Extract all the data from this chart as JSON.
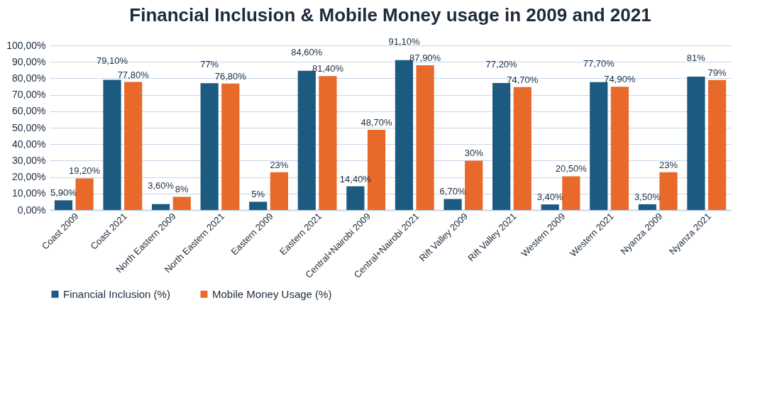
{
  "chart_data": {
    "type": "bar",
    "title": "Financial Inclusion & Mobile Money usage in 2009 and 2021",
    "categories": [
      "Coast 2009",
      "Coast 2021",
      "North Eastern 2009",
      "North Eastern 2021",
      "Eastern 2009",
      "Eastern 2021",
      "Central+Nairobi 2009",
      "Central+Nairobi 2021",
      "Rift Valley 2009",
      "Rift Valley 2021",
      "Western 2009",
      "Western 2021",
      "Nyanza 2009",
      "Nyanza 2021"
    ],
    "series": [
      {
        "name": "Financial Inclusion (%)",
        "color": "#1d5a80",
        "values": [
          5.9,
          79.1,
          3.6,
          77,
          5,
          84.6,
          14.4,
          91.1,
          6.7,
          77.2,
          3.4,
          77.7,
          3.5,
          81
        ],
        "value_labels": [
          "5,90%",
          "79,10%",
          "3,60%",
          "77%",
          "5%",
          "84,60%",
          "14,40%",
          "91,10%",
          "6,70%",
          "77,20%",
          "3,40%",
          "77,70%",
          "3,50%",
          "81%"
        ]
      },
      {
        "name": "Mobile Money Usage (%)",
        "color": "#e8692a",
        "values": [
          19.2,
          77.8,
          8,
          76.8,
          23,
          81.4,
          48.7,
          87.9,
          30,
          74.7,
          20.5,
          74.9,
          23,
          79
        ],
        "value_labels": [
          "19,20%",
          "77,80%",
          "8%",
          "76,80%",
          "23%",
          "81,40%",
          "48,70%",
          "87,90%",
          "30%",
          "74,70%",
          "20,50%",
          "74,90%",
          "23%",
          "79%"
        ]
      }
    ],
    "ylim": [
      0,
      100
    ],
    "yticks": [
      {
        "value": 0,
        "label": "0,00%"
      },
      {
        "value": 10,
        "label": "10,00%"
      },
      {
        "value": 20,
        "label": "20,00%"
      },
      {
        "value": 30,
        "label": "30,00%"
      },
      {
        "value": 40,
        "label": "40,00%"
      },
      {
        "value": 50,
        "label": "50,00%"
      },
      {
        "value": 60,
        "label": "60,00%"
      },
      {
        "value": 70,
        "label": "70,00%"
      },
      {
        "value": 80,
        "label": "80,00%"
      },
      {
        "value": 90,
        "label": "90,00%"
      },
      {
        "value": 100,
        "label": "100,00%"
      }
    ],
    "grid": "y",
    "legend": "bottom"
  }
}
